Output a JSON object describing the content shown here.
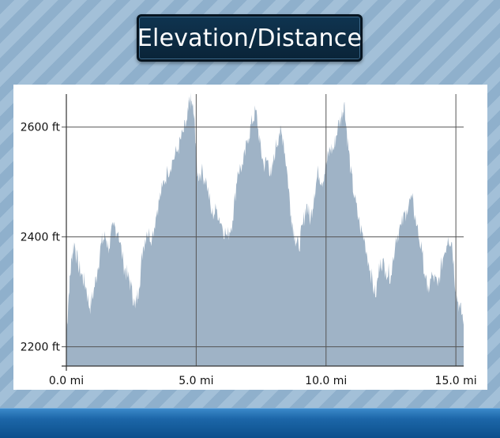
{
  "title": "Elevation/Distance",
  "colors": {
    "fill": "#9fb3c6",
    "grid": "#555555",
    "frame": "#333333"
  },
  "chart_data": {
    "type": "area",
    "title": "Elevation/Distance",
    "xlim": [
      0,
      15.3
    ],
    "ylim": [
      2165,
      2660
    ],
    "xticks": [
      0,
      5,
      10,
      15
    ],
    "xtick_labels": [
      "0.0 mi",
      "5.0 mi",
      "10.0 mi",
      "15.0 mi"
    ],
    "yticks": [
      2200,
      2400,
      2600
    ],
    "ytick_labels": [
      "2200 ft",
      "2400 ft",
      "2600 ft"
    ],
    "grid": true,
    "series": [
      {
        "x": [
          0,
          0.1,
          0.2,
          0.3,
          0.45,
          0.6,
          0.75,
          0.9,
          1.05,
          1.2,
          1.35,
          1.5,
          1.65,
          1.8,
          2.0,
          2.2,
          2.35,
          2.5,
          2.65,
          2.8,
          2.95,
          3.1,
          3.3,
          3.5,
          3.7,
          3.9,
          4.1,
          4.3,
          4.5,
          4.65,
          4.75,
          4.85,
          4.95,
          5.05,
          5.2,
          5.4,
          5.6,
          5.8,
          6.0,
          6.2,
          6.4,
          6.6,
          6.8,
          7.0,
          7.15,
          7.3,
          7.45,
          7.6,
          7.75,
          7.9,
          8.05,
          8.2,
          8.35,
          8.5,
          8.65,
          8.8,
          8.95,
          9.1,
          9.25,
          9.4,
          9.55,
          9.7,
          9.85,
          10.0,
          10.15,
          10.3,
          10.45,
          10.6,
          10.7,
          10.8,
          10.95,
          11.1,
          11.3,
          11.5,
          11.7,
          11.9,
          12.1,
          12.3,
          12.5,
          12.7,
          12.9,
          13.1,
          13.3,
          13.5,
          13.7,
          13.9,
          14.1,
          14.3,
          14.5,
          14.7,
          14.85,
          15.0,
          15.15,
          15.3
        ],
        "y": [
          2220,
          2300,
          2360,
          2390,
          2350,
          2330,
          2310,
          2270,
          2300,
          2340,
          2390,
          2400,
          2380,
          2420,
          2410,
          2350,
          2330,
          2310,
          2270,
          2310,
          2380,
          2410,
          2400,
          2450,
          2490,
          2520,
          2540,
          2560,
          2590,
          2610,
          2650,
          2640,
          2600,
          2510,
          2520,
          2500,
          2440,
          2450,
          2420,
          2400,
          2430,
          2520,
          2530,
          2580,
          2610,
          2630,
          2570,
          2530,
          2540,
          2510,
          2560,
          2590,
          2580,
          2520,
          2440,
          2400,
          2380,
          2420,
          2460,
          2430,
          2480,
          2520,
          2500,
          2530,
          2560,
          2560,
          2600,
          2620,
          2645,
          2590,
          2520,
          2470,
          2420,
          2390,
          2340,
          2290,
          2360,
          2340,
          2330,
          2400,
          2420,
          2450,
          2470,
          2420,
          2370,
          2300,
          2330,
          2310,
          2360,
          2400,
          2390,
          2300,
          2270,
          2250
        ]
      }
    ]
  }
}
